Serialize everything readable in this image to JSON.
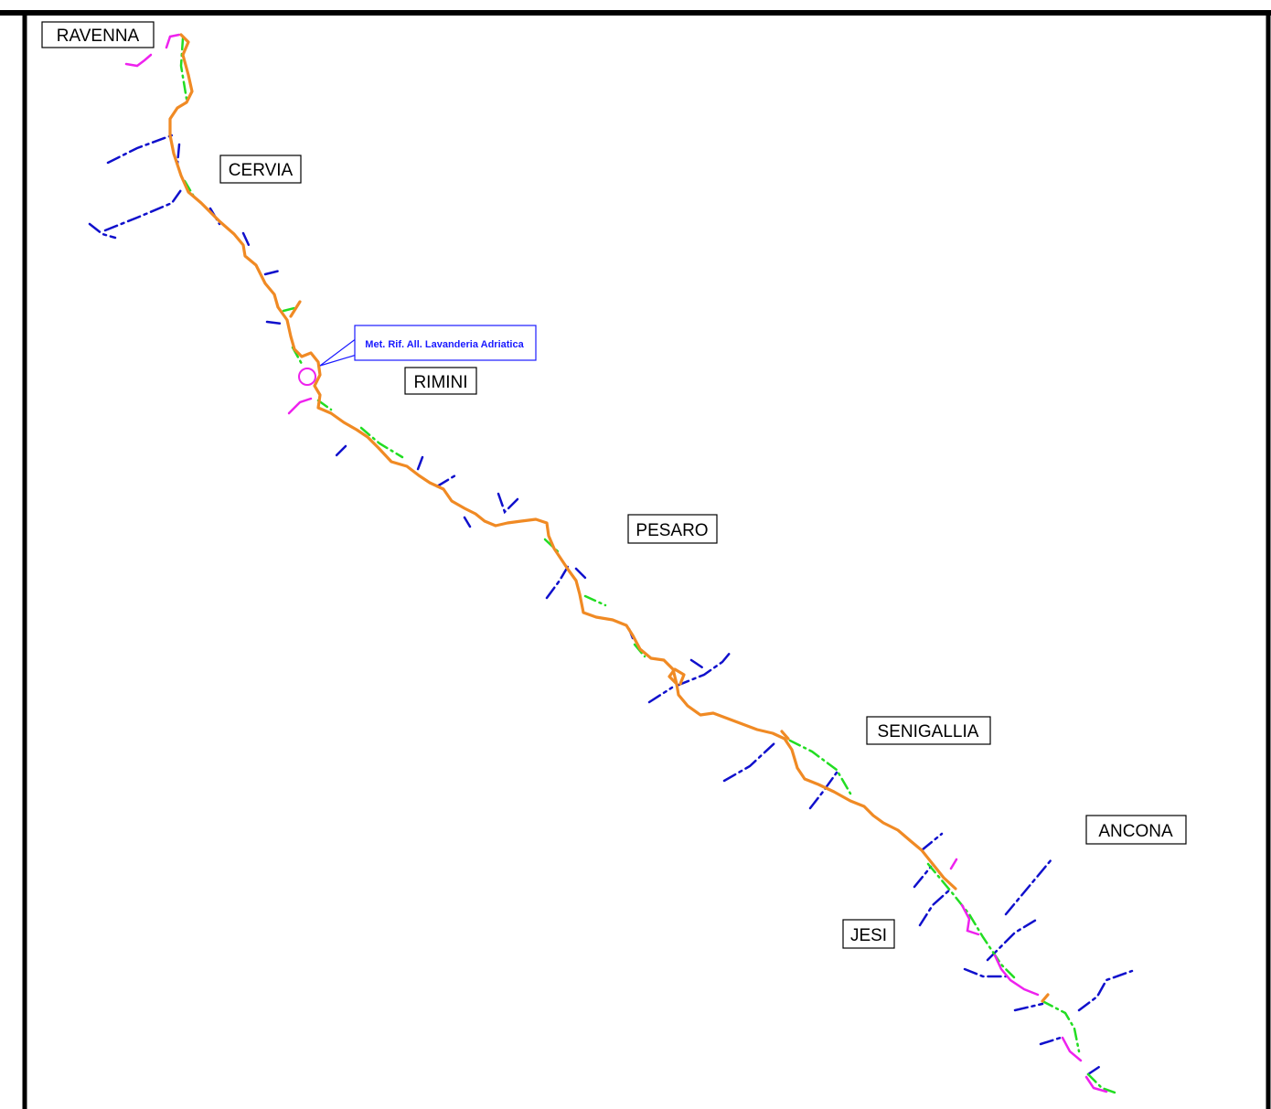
{
  "colors": {
    "main_route": "#f08a24",
    "dash_green": "#22dd22",
    "branch_blue": "#1010cc",
    "magenta": "#ee22ee",
    "frame": "#000000",
    "callout": "#1a1aff"
  },
  "cities": {
    "ravenna": "RAVENNA",
    "cervia": "CERVIA",
    "rimini": "RIMINI",
    "pesaro": "PESARO",
    "senigallia": "SENIGALLIA",
    "ancona": "ANCONA",
    "jesi": "JESI"
  },
  "callout": {
    "label": "Met. Rif. All. Lavanderia Adriatica"
  }
}
